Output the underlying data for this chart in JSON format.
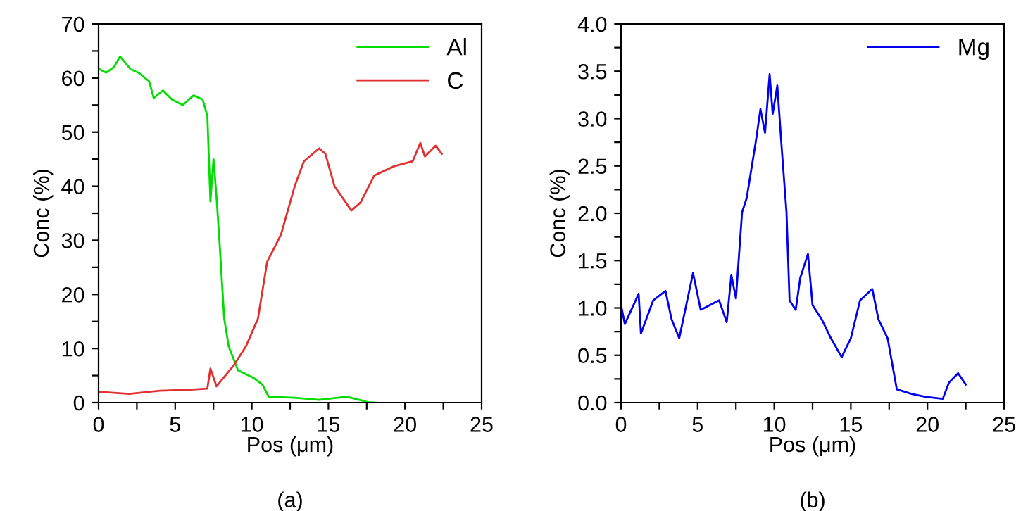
{
  "chart_data": [
    {
      "type": "line",
      "xlabel": "Pos (μm)",
      "ylabel": "Conc (%)",
      "annotations": [
        "(a)"
      ],
      "legend": "top right",
      "grid": false,
      "xlim": [
        0,
        25
      ],
      "ylim": [
        0,
        70
      ],
      "xticks": [
        0,
        {
          "value": 2.5,
          "label": null
        },
        5,
        {
          "value": 7.5,
          "label": null
        },
        10,
        {
          "value": 12.5,
          "label": null
        },
        15,
        {
          "value": 17.5,
          "label": null
        },
        20,
        {
          "value": 22.5,
          "label": null
        },
        25
      ],
      "yticks": [
        0,
        {
          "value": 5,
          "label": null
        },
        10,
        {
          "value": 15,
          "label": null
        },
        20,
        {
          "value": 25,
          "label": null
        },
        30,
        {
          "value": 35,
          "label": null
        },
        40,
        {
          "value": 45,
          "label": null
        },
        50,
        {
          "value": 55,
          "label": null
        },
        60,
        {
          "value": 65,
          "label": null
        },
        70
      ],
      "series": [
        {
          "name": "Al",
          "color": "#00dd00",
          "x": [
            0,
            0.5,
            1,
            1.4,
            2.1,
            2.6,
            3.3,
            3.6,
            4.2,
            4.8,
            5.5,
            6.2,
            6.8,
            7.1,
            7.3,
            7.5,
            7.7,
            7.9,
            8.2,
            8.5,
            9.1,
            10.1,
            10.7,
            11.1,
            12.8,
            14.4,
            16.2,
            17.7,
            18
          ],
          "values": [
            61.7,
            61,
            62,
            64,
            61.6,
            61,
            59.4,
            56.3,
            57.7,
            56,
            55,
            56.8,
            56,
            53,
            37.2,
            45,
            38,
            29.4,
            15.5,
            10.3,
            6,
            4.6,
            3.3,
            1.1,
            0.9,
            0.5,
            1.1,
            0,
            0
          ]
        },
        {
          "name": "C",
          "color": "#e03030",
          "x": [
            0,
            2,
            4,
            6,
            7.1,
            7.3,
            7.7,
            8.8,
            9.6,
            10.4,
            11,
            11.9,
            12.8,
            13.4,
            14.4,
            14.8,
            15.4,
            16.5,
            17.1,
            18,
            19.3,
            20.5,
            21,
            21.3,
            22,
            22.4
          ],
          "values": [
            2,
            1.6,
            2.2,
            2.4,
            2.6,
            6.3,
            3,
            6.8,
            10.3,
            15.5,
            26,
            31,
            40,
            44.6,
            47,
            46,
            40,
            35.5,
            37,
            42,
            43.7,
            44.6,
            48,
            45.5,
            47.5,
            46
          ]
        }
      ]
    },
    {
      "type": "line",
      "xlabel": "Pos (μm)",
      "ylabel": "Conc (%)",
      "annotations": [
        "(b)"
      ],
      "legend": "top right",
      "grid": false,
      "xlim": [
        0,
        25
      ],
      "ylim": [
        0,
        4.0
      ],
      "xticks": [
        0,
        {
          "value": 2.5,
          "label": null
        },
        5,
        {
          "value": 7.5,
          "label": null
        },
        10,
        {
          "value": 12.5,
          "label": null
        },
        15,
        {
          "value": 17.5,
          "label": null
        },
        20,
        {
          "value": 22.5,
          "label": null
        },
        25
      ],
      "yticks": [
        {
          "value": 0,
          "label": "0.0"
        },
        {
          "value": 0.25,
          "label": null
        },
        0.5,
        {
          "value": 0.75,
          "label": null
        },
        {
          "value": 1,
          "label": "1.0"
        },
        {
          "value": 1.25,
          "label": null
        },
        1.5,
        {
          "value": 1.75,
          "label": null
        },
        {
          "value": 2,
          "label": "2.0"
        },
        {
          "value": 2.25,
          "label": null
        },
        2.5,
        {
          "value": 2.75,
          "label": null
        },
        {
          "value": 3,
          "label": "3.0"
        },
        {
          "value": 3.25,
          "label": null
        },
        3.5,
        {
          "value": 3.75,
          "label": null
        },
        {
          "value": 4,
          "label": "4.0"
        }
      ],
      "series": [
        {
          "name": "Mg",
          "color": "#0000ee",
          "x": [
            0,
            0.25,
            1.15,
            1.3,
            2.1,
            2.9,
            3.3,
            3.8,
            4.7,
            5.2,
            6.4,
            6.9,
            7.2,
            7.5,
            7.9,
            8.2,
            8.8,
            9.1,
            9.4,
            9.7,
            9.9,
            10.2,
            10.5,
            10.8,
            11.0,
            11.4,
            11.7,
            12.2,
            12.5,
            13.1,
            13.7,
            14.4,
            15.0,
            15.6,
            16.4,
            16.8,
            17.4,
            18.0,
            19.0,
            19.9,
            21.0,
            21.4,
            22.0,
            22.5
          ],
          "values": [
            1.03,
            0.83,
            1.15,
            0.73,
            1.08,
            1.18,
            0.88,
            0.68,
            1.37,
            0.98,
            1.08,
            0.85,
            1.35,
            1.1,
            2.01,
            2.16,
            2.76,
            3.1,
            2.85,
            3.47,
            3.05,
            3.35,
            2.66,
            2.01,
            1.08,
            0.98,
            1.32,
            1.57,
            1.03,
            0.88,
            0.68,
            0.48,
            0.68,
            1.08,
            1.2,
            0.88,
            0.68,
            0.14,
            0.09,
            0.06,
            0.04,
            0.21,
            0.31,
            0.19
          ]
        }
      ]
    }
  ]
}
